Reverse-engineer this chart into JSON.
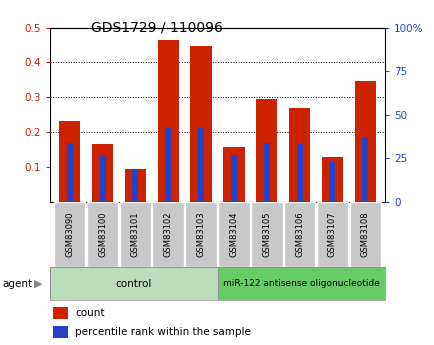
{
  "title": "GDS1729 / 110096",
  "samples": [
    "GSM83090",
    "GSM83100",
    "GSM83101",
    "GSM83102",
    "GSM83103",
    "GSM83104",
    "GSM83105",
    "GSM83106",
    "GSM83107",
    "GSM83108"
  ],
  "count_values": [
    0.232,
    0.165,
    0.095,
    0.465,
    0.448,
    0.158,
    0.295,
    0.268,
    0.13,
    0.348
  ],
  "percentile_values": [
    0.168,
    0.135,
    0.095,
    0.212,
    0.212,
    0.133,
    0.17,
    0.165,
    0.115,
    0.185
  ],
  "left_ylim": [
    0.0,
    0.5
  ],
  "right_ylim": [
    0,
    100
  ],
  "left_yticks": [
    0.1,
    0.2,
    0.3,
    0.4,
    0.5
  ],
  "right_yticks": [
    0,
    25,
    50,
    75,
    100
  ],
  "left_yticklabels": [
    "0.1",
    "0.2",
    "0.3",
    "0.4",
    "0.5"
  ],
  "right_yticklabels": [
    "0",
    "25",
    "50",
    "75",
    "100%"
  ],
  "bar_color": "#cc2200",
  "percentile_color": "#2244cc",
  "tick_label_bg": "#c8c8c8",
  "control_color": "#bbddbb",
  "treatment_color": "#66cc66",
  "control_label": "control",
  "treatment_label": "miR-122 antisense oligonucleotide",
  "agent_label": "agent",
  "legend_count": "count",
  "legend_percentile": "percentile rank within the sample",
  "bar_width": 0.65,
  "pct_bar_width": 0.18,
  "title_fontsize": 10,
  "axis_fontsize": 7.5,
  "legend_fontsize": 7.5
}
